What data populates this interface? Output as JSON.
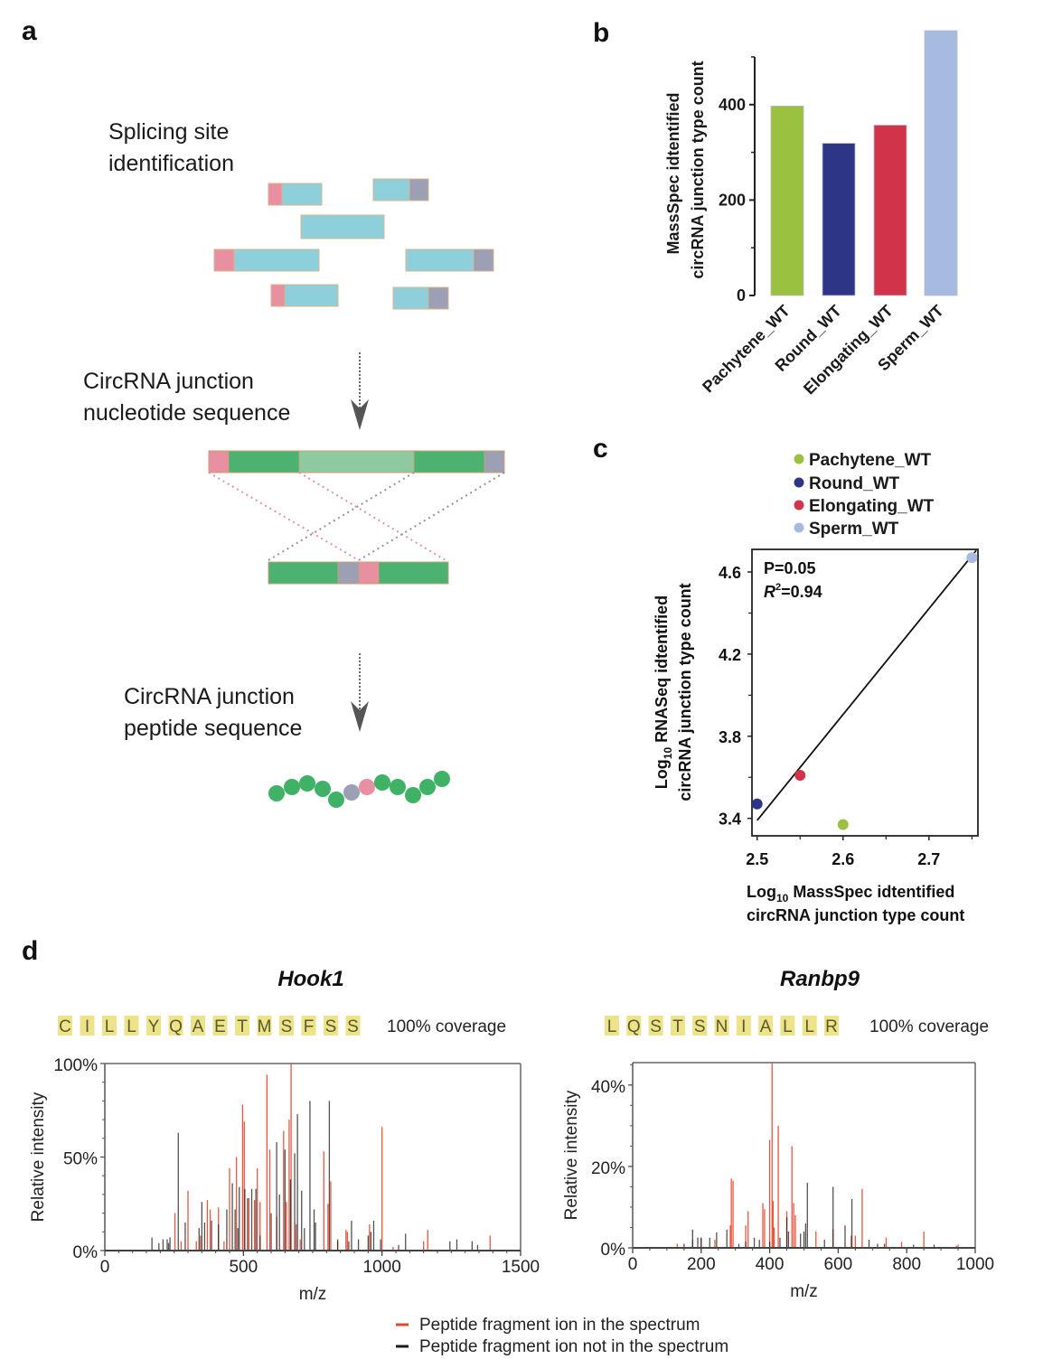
{
  "panels": {
    "a": {
      "letter": "a",
      "steps": [
        {
          "line1": "Splicing site",
          "line2": "identification"
        },
        {
          "line1": "CircRNA junction",
          "line2": "nucleotide sequence"
        },
        {
          "line1": "CircRNA junction",
          "line2": "peptide sequence"
        }
      ],
      "colors": {
        "exon": "#8ecfdc",
        "back_splice_5": "#e98fa2",
        "back_splice_3": "#9d9fb5",
        "junction_exon": "#4cb271",
        "junction_mid": "#8fc9a0",
        "bead": "#3fb266"
      }
    },
    "b": {
      "letter": "b"
    },
    "c": {
      "letter": "c"
    },
    "d": {
      "letter": "d",
      "legend": [
        {
          "label": "Peptide fragment ion in the spectrum",
          "color": "#e8442a"
        },
        {
          "label": "Peptide fragment ion not in the spectrum",
          "color": "#1a1a1a"
        }
      ]
    }
  },
  "chart_data": [
    {
      "id": "b",
      "type": "bar",
      "title": "",
      "categories": [
        "Pachytene_WT",
        "Round_WT",
        "Elongating_WT",
        "Sperm_WT"
      ],
      "values": [
        397,
        319,
        357,
        555
      ],
      "colors": [
        "#9bc140",
        "#2d3686",
        "#d1344a",
        "#a7bbe0"
      ],
      "xlabel": "",
      "ylabel_line1": "MassSpec idtentified",
      "ylabel_line2": "circRNA junction type count",
      "ylim": [
        0,
        500
      ],
      "yticks": [
        0,
        200,
        400
      ],
      "ytick_labels": [
        "0",
        "200",
        "400"
      ],
      "minor_yticks": [
        100,
        300,
        500
      ],
      "grid": false
    },
    {
      "id": "c",
      "type": "scatter",
      "legend": [
        "Pachytene_WT",
        "Round_WT",
        "Elongating_WT",
        "Sperm_WT"
      ],
      "legend_placement": "top",
      "points": [
        {
          "name": "Pachytene_WT",
          "x": 2.6,
          "y": 3.37,
          "color": "#9bc140"
        },
        {
          "name": "Round_WT",
          "x": 2.5,
          "y": 3.47,
          "color": "#2d3686"
        },
        {
          "name": "Elongating_WT",
          "x": 2.55,
          "y": 3.61,
          "color": "#d1344a"
        },
        {
          "name": "Sperm_WT",
          "x": 2.75,
          "y": 4.67,
          "color": "#a7bbe0"
        }
      ],
      "fit_line": {
        "x": [
          2.5,
          2.755
        ],
        "y": [
          3.39,
          4.705
        ]
      },
      "annotation_p": "P=0.05",
      "annotation_r2_prefix": "R",
      "annotation_r2_sup": "2",
      "annotation_r2_value": "=0.94",
      "xlabel_prefix": "Log",
      "xlabel_sub": "10",
      "xlabel_rest": " MassSpec idtentified",
      "xlabel_line2": "circRNA junction type count",
      "ylabel_prefix": "Log",
      "ylabel_sub": "10",
      "ylabel_rest": " RNASeq idtentified",
      "ylabel_line2": "circRNA junction type count",
      "xlim": [
        2.494,
        2.757
      ],
      "ylim": [
        3.315,
        4.71
      ],
      "xticks": [
        2.5,
        2.6,
        2.7
      ],
      "xtick_labels": [
        "2.5",
        "2.6",
        "2.7"
      ],
      "minor_xticks": [
        2.55,
        2.65,
        2.75
      ],
      "yticks": [
        3.4,
        3.8,
        4.2,
        4.6
      ],
      "ytick_labels": [
        "3.4",
        "3.8",
        "4.2",
        "4.6"
      ],
      "minor_yticks": [
        3.6,
        4.0,
        4.4
      ],
      "grid": false
    },
    {
      "id": "d-hook1",
      "type": "bar",
      "subtype": "mass-spectrum",
      "title": "Hook1",
      "sequence": [
        "C",
        "I",
        "L",
        "L",
        "Y",
        "Q",
        "A",
        "E",
        "T",
        "M",
        "S",
        "F",
        "S",
        "S"
      ],
      "coverage": "100% coverage",
      "xlabel": "m/z",
      "ylabel": "Relative intensity",
      "xlim": [
        0,
        1500
      ],
      "ylim": [
        0,
        100
      ],
      "xticks": [
        0,
        500,
        1000,
        1500
      ],
      "xtick_labels": [
        "0",
        "500",
        "1000",
        "1500"
      ],
      "yticks": [
        0,
        50,
        100
      ],
      "ytick_labels": [
        "0%",
        "50%",
        "100%"
      ],
      "series": [
        {
          "name": "Peptide fragment ion in the spectrum",
          "color": "#e8442a",
          "peaks": [
            [
              253,
              20
            ],
            [
              300,
              32
            ],
            [
              345,
              8
            ],
            [
              370,
              27
            ],
            [
              380,
              22
            ],
            [
              410,
              23
            ],
            [
              450,
              44
            ],
            [
              475,
              50
            ],
            [
              497,
              78
            ],
            [
              503,
              69
            ],
            [
              550,
              44
            ],
            [
              560,
              26
            ],
            [
              585,
              94
            ],
            [
              595,
              54
            ],
            [
              620,
              18
            ],
            [
              645,
              64
            ],
            [
              655,
              26
            ],
            [
              665,
              70
            ],
            [
              672,
              100
            ],
            [
              690,
              14
            ],
            [
              790,
              53
            ],
            [
              805,
              25
            ],
            [
              815,
              37
            ],
            [
              870,
              11
            ],
            [
              875,
              10
            ],
            [
              1000,
              66
            ],
            [
              955,
              14
            ],
            [
              1165,
              11
            ],
            [
              1390,
              8
            ],
            [
              520,
              28
            ],
            [
              540,
              27
            ],
            [
              275,
              5
            ],
            [
              330,
              5
            ],
            [
              430,
              5
            ],
            [
              705,
              6
            ],
            [
              840,
              5
            ],
            [
              1150,
              5
            ],
            [
              1040,
              2
            ]
          ]
        },
        {
          "name": "Peptide fragment ion not in the spectrum",
          "color": "#1a1a1a",
          "peaks": [
            [
              170,
              7
            ],
            [
              195,
              4
            ],
            [
              210,
              6
            ],
            [
              225,
              6
            ],
            [
              235,
              7
            ],
            [
              265,
              63
            ],
            [
              290,
              15
            ],
            [
              340,
              12
            ],
            [
              350,
              26
            ],
            [
              360,
              15
            ],
            [
              385,
              16
            ],
            [
              410,
              14
            ],
            [
              440,
              22
            ],
            [
              460,
              36
            ],
            [
              470,
              22
            ],
            [
              485,
              34
            ],
            [
              505,
              33
            ],
            [
              515,
              28
            ],
            [
              530,
              33
            ],
            [
              545,
              33
            ],
            [
              600,
              20
            ],
            [
              620,
              58
            ],
            [
              630,
              30
            ],
            [
              650,
              54
            ],
            [
              670,
              38
            ],
            [
              685,
              52
            ],
            [
              695,
              73
            ],
            [
              710,
              32
            ],
            [
              740,
              80
            ],
            [
              755,
              22
            ],
            [
              810,
              80
            ],
            [
              840,
              6
            ],
            [
              890,
              16
            ],
            [
              915,
              6
            ],
            [
              950,
              8
            ],
            [
              960,
              10
            ],
            [
              970,
              16
            ],
            [
              995,
              6
            ],
            [
              1060,
              3
            ],
            [
              1085,
              9
            ],
            [
              1245,
              5
            ],
            [
              1270,
              6
            ],
            [
              1325,
              5
            ],
            [
              1345,
              3
            ],
            [
              230,
              4
            ],
            [
              480,
              12
            ],
            [
              560,
              8
            ],
            [
              720,
              12
            ],
            [
              760,
              15
            ],
            [
              880,
              5
            ]
          ]
        }
      ]
    },
    {
      "id": "d-ranbp9",
      "type": "bar",
      "subtype": "mass-spectrum",
      "title": "Ranbp9",
      "sequence": [
        "L",
        "Q",
        "S",
        "T",
        "S",
        "N",
        "I",
        "A",
        "L",
        "L",
        "R"
      ],
      "coverage": "100% coverage",
      "xlabel": "m/z",
      "ylabel": "Relative intensity",
      "xlim": [
        0,
        1000
      ],
      "ylim": [
        0,
        45.5
      ],
      "xticks": [
        0,
        200,
        400,
        600,
        800,
        1000
      ],
      "xtick_labels": [
        "0",
        "200",
        "400",
        "600",
        "800",
        "1000"
      ],
      "yticks": [
        0,
        20,
        40
      ],
      "ytick_labels": [
        "0%",
        "20%",
        "40%"
      ],
      "series": [
        {
          "name": "Peptide fragment ion in the spectrum",
          "color": "#e8442a",
          "peaks": [
            [
              130,
              1
            ],
            [
              175,
              2
            ],
            [
              200,
              2.5
            ],
            [
              240,
              2
            ],
            [
              285,
              5.5
            ],
            [
              288,
              17
            ],
            [
              293,
              16.5
            ],
            [
              330,
              5.5
            ],
            [
              337,
              9
            ],
            [
              380,
              11
            ],
            [
              385,
              9.5
            ],
            [
              400,
              26.5
            ],
            [
              407,
              45.5
            ],
            [
              410,
              11.5
            ],
            [
              413,
              5
            ],
            [
              425,
              30
            ],
            [
              450,
              9
            ],
            [
              465,
              25
            ],
            [
              470,
              11
            ],
            [
              475,
              8
            ],
            [
              535,
              4
            ],
            [
              585,
              4.5
            ],
            [
              638,
              3
            ],
            [
              650,
              3
            ],
            [
              670,
              14.5
            ],
            [
              740,
              2.5
            ],
            [
              785,
              1.5
            ],
            [
              850,
              4
            ],
            [
              950,
              0.8
            ],
            [
              945,
              0.5
            ]
          ]
        },
        {
          "name": "Peptide fragment ion not in the spectrum",
          "color": "#1a1a1a",
          "peaks": [
            [
              150,
              1
            ],
            [
              175,
              4.5
            ],
            [
              190,
              2.5
            ],
            [
              200,
              2.5
            ],
            [
              225,
              2.5
            ],
            [
              245,
              3.8
            ],
            [
              275,
              4.5
            ],
            [
              310,
              1
            ],
            [
              330,
              1.5
            ],
            [
              355,
              2.5
            ],
            [
              370,
              2
            ],
            [
              400,
              1.5
            ],
            [
              430,
              2.5
            ],
            [
              450,
              7.5
            ],
            [
              455,
              4
            ],
            [
              490,
              3.5
            ],
            [
              500,
              4
            ],
            [
              505,
              6
            ],
            [
              510,
              16
            ],
            [
              560,
              2
            ],
            [
              585,
              15
            ],
            [
              620,
              5.5
            ],
            [
              640,
              12
            ],
            [
              690,
              2
            ],
            [
              715,
              1
            ],
            [
              735,
              1
            ],
            [
              820,
              0.8
            ],
            [
              880,
              0.8
            ]
          ]
        }
      ]
    }
  ]
}
